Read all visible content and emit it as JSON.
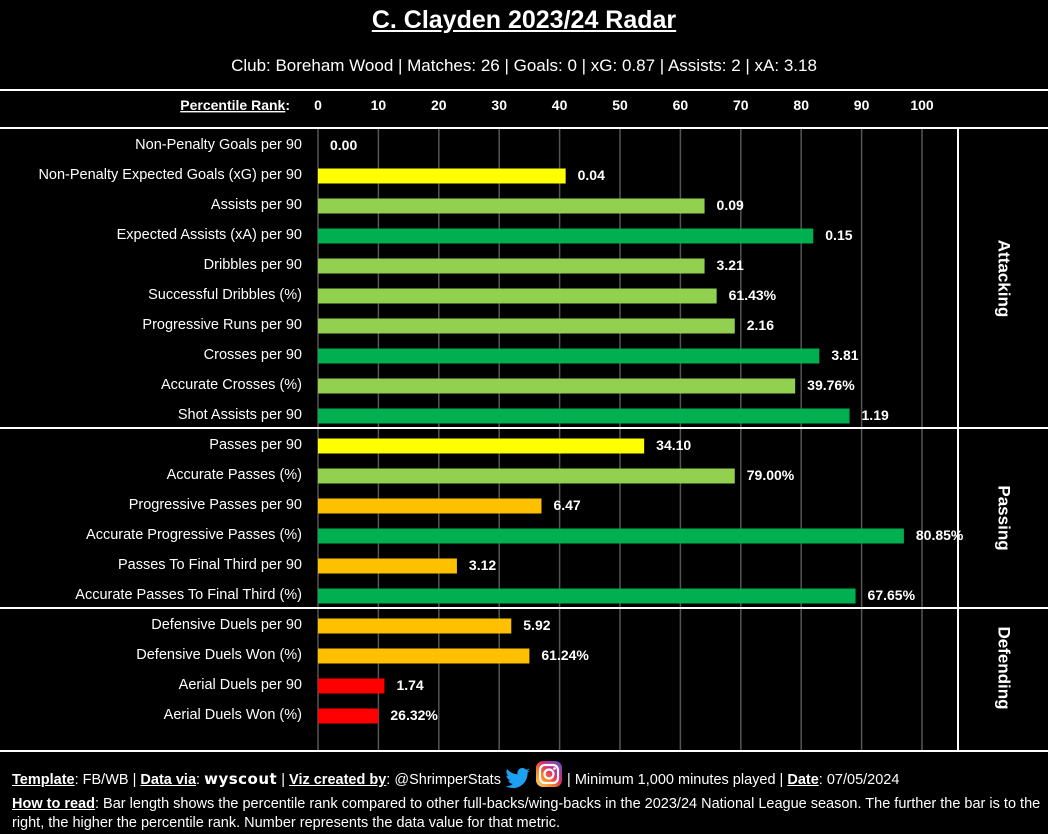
{
  "header": {
    "title": "C. Clayden 2023/24 Radar",
    "subtitle": "Club: Boreham Wood | Matches: 26 | Goals: 0 | xG: 0.87 | Assists: 2 | xA: 3.18"
  },
  "chart_data": {
    "type": "bar",
    "orientation": "horizontal",
    "title": "C. Clayden 2023/24 Radar",
    "xlabel": "Percentile Rank",
    "xlim": [
      0,
      100
    ],
    "x_ticks": [
      0,
      10,
      20,
      30,
      40,
      50,
      60,
      70,
      80,
      90,
      100
    ],
    "grid": true,
    "colors": {
      "red": "#ff0000",
      "orange": "#ffc000",
      "yellow": "#ffff00",
      "lightgreen": "#92d050",
      "green": "#00b050"
    },
    "groups": [
      {
        "name": "Attacking",
        "metrics": [
          {
            "label": "Non-Penalty Goals per 90",
            "percentile": 0,
            "value": "0.00",
            "color": "#ff0000"
          },
          {
            "label": "Non-Penalty Expected Goals (xG) per 90",
            "percentile": 41,
            "value": "0.04",
            "color": "#ffff00"
          },
          {
            "label": "Assists per 90",
            "percentile": 64,
            "value": "0.09",
            "color": "#92d050"
          },
          {
            "label": "Expected Assists (xA) per 90",
            "percentile": 82,
            "value": "0.15",
            "color": "#00b050"
          },
          {
            "label": "Dribbles per 90",
            "percentile": 64,
            "value": "3.21",
            "color": "#92d050"
          },
          {
            "label": "Successful Dribbles (%)",
            "percentile": 66,
            "value": "61.43%",
            "color": "#92d050"
          },
          {
            "label": "Progressive Runs per 90",
            "percentile": 69,
            "value": "2.16",
            "color": "#92d050"
          },
          {
            "label": "Crosses per 90",
            "percentile": 83,
            "value": "3.81",
            "color": "#00b050"
          },
          {
            "label": "Accurate Crosses (%)",
            "percentile": 79,
            "value": "39.76%",
            "color": "#92d050"
          },
          {
            "label": "Shot Assists per 90",
            "percentile": 88,
            "value": "1.19",
            "color": "#00b050"
          }
        ]
      },
      {
        "name": "Passing",
        "metrics": [
          {
            "label": "Passes per 90",
            "percentile": 54,
            "value": "34.10",
            "color": "#ffff00"
          },
          {
            "label": "Accurate Passes (%)",
            "percentile": 69,
            "value": "79.00%",
            "color": "#92d050"
          },
          {
            "label": "Progressive Passes per 90",
            "percentile": 37,
            "value": "6.47",
            "color": "#ffc000"
          },
          {
            "label": "Accurate Progressive Passes (%)",
            "percentile": 97,
            "value": "80.85%",
            "color": "#00b050"
          },
          {
            "label": "Passes To Final Third per 90",
            "percentile": 23,
            "value": "3.12",
            "color": "#ffc000"
          },
          {
            "label": "Accurate Passes To Final Third (%)",
            "percentile": 89,
            "value": "67.65%",
            "color": "#00b050"
          }
        ]
      },
      {
        "name": "Defending",
        "metrics": [
          {
            "label": "Defensive Duels per 90",
            "percentile": 32,
            "value": "5.92",
            "color": "#ffc000"
          },
          {
            "label": "Defensive Duels Won (%)",
            "percentile": 35,
            "value": "61.24%",
            "color": "#ffc000"
          },
          {
            "label": "Aerial Duels per 90",
            "percentile": 11,
            "value": "1.74",
            "color": "#ff0000"
          },
          {
            "label": "Aerial Duels Won (%)",
            "percentile": 10,
            "value": "26.32%",
            "color": "#ff0000"
          }
        ]
      }
    ]
  },
  "footer": {
    "template_label": "Template",
    "template_value": "FB/WB",
    "data_via_label": "Data via",
    "data_source": "wyscout",
    "viz_label": "Viz created by",
    "viz_value": "@ShrimperStats",
    "icons": [
      "twitter-bird-icon",
      "instagram-icon"
    ],
    "minimum": "Minimum 1,000 minutes played",
    "date_label": "Date",
    "date_value": "07/05/2024",
    "how_label": "How to read",
    "how_text": "Bar length shows the percentile rank compared to other full-backs/wing-backs in the 2023/24 National League season. The further the bar is to the right, the higher the percentile rank. Number represents the data value for that metric."
  }
}
